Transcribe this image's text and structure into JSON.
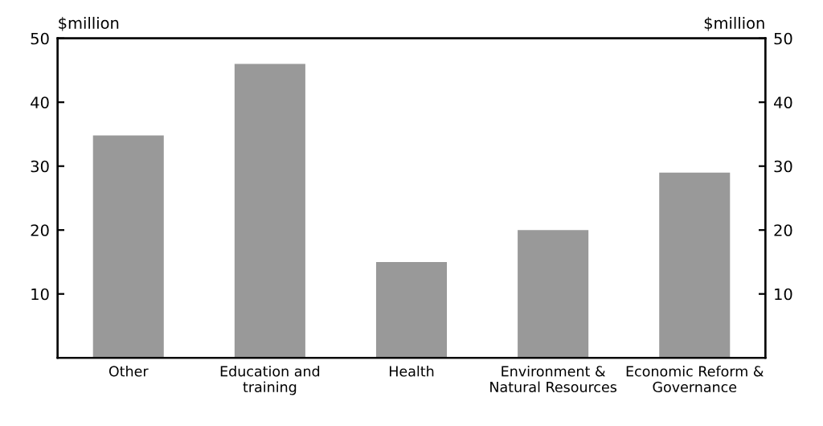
{
  "chart_data": {
    "type": "bar",
    "categories": [
      "Other",
      "Education and\ntraining",
      "Health",
      "Environment &\nNatural Resources",
      "Economic Reform &\nGovernance"
    ],
    "values": [
      34.8,
      46,
      15,
      20,
      29
    ],
    "color": "#999999",
    "ylabel": "$million",
    "y2label": "$million",
    "ylim": [
      0,
      50
    ],
    "yticks": [
      10,
      20,
      30,
      40,
      50
    ],
    "y2lim": [
      0,
      50
    ],
    "y2ticks": [
      10,
      20,
      30,
      40,
      50
    ],
    "grid": false,
    "legend": false
  }
}
